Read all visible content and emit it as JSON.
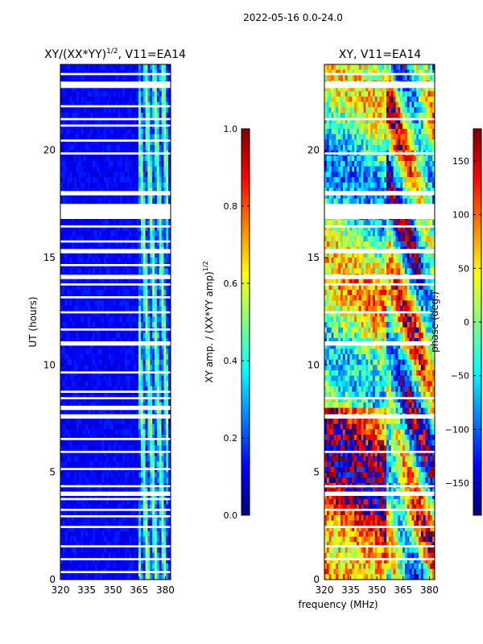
{
  "figure": {
    "suptitle": "2022-05-16 0.0-24.0",
    "xlabel": "frequency (MHz)"
  },
  "colors": {
    "jet": [
      "#00007f",
      "#0000ff",
      "#007fff",
      "#00ffff",
      "#7fff7f",
      "#ffff00",
      "#ff7f00",
      "#ff0000",
      "#7f0000"
    ],
    "blank_row": "#ffffff"
  },
  "chart_data": [
    {
      "type": "heatmap",
      "title": "XY/(XX*YY)",
      "title_superscript": "1/2",
      "title_suffix": ", V11=EA14",
      "ylabel": "UT (hours)",
      "xlim": [
        320,
        383
      ],
      "ylim": [
        0,
        24
      ],
      "xticks": [
        320,
        335,
        350,
        365,
        380
      ],
      "yticks": [
        0,
        5,
        10,
        15,
        20
      ],
      "colorbar": {
        "label": "XY amp. / (XX*YY amp)",
        "label_superscript": "1/2",
        "range": [
          0.0,
          1.0
        ],
        "ticks": [
          "0.0",
          "0.2",
          "0.4",
          "0.6",
          "0.8",
          "1.0"
        ],
        "tick_values": [
          0.0,
          0.2,
          0.4,
          0.6,
          0.8,
          1.0
        ]
      },
      "blank_time_ranges_hours": [
        [
          0.3,
          0.4
        ],
        [
          0.9,
          1.0
        ],
        [
          1.5,
          1.6
        ],
        [
          2.4,
          2.5
        ],
        [
          2.9,
          3.0
        ],
        [
          3.2,
          3.3
        ],
        [
          3.7,
          3.8
        ],
        [
          3.9,
          4.1
        ],
        [
          4.3,
          4.4
        ],
        [
          5.1,
          5.2
        ],
        [
          5.9,
          6.0
        ],
        [
          6.5,
          6.6
        ],
        [
          7.5,
          7.7
        ],
        [
          7.9,
          8.1
        ],
        [
          8.4,
          8.5
        ],
        [
          8.7,
          8.8
        ],
        [
          9.6,
          9.7
        ],
        [
          10.9,
          11.1
        ],
        [
          11.6,
          11.7
        ],
        [
          12.4,
          12.5
        ],
        [
          13.1,
          13.2
        ],
        [
          13.7,
          13.8
        ],
        [
          14.0,
          14.2
        ],
        [
          14.6,
          14.7
        ],
        [
          15.2,
          15.4
        ],
        [
          15.7,
          15.8
        ],
        [
          16.4,
          16.5
        ],
        [
          16.8,
          17.5
        ],
        [
          17.9,
          18.1
        ],
        [
          19.8,
          19.9
        ],
        [
          20.4,
          20.5
        ],
        [
          21.1,
          21.2
        ],
        [
          21.4,
          21.5
        ],
        [
          22.0,
          22.1
        ],
        [
          22.9,
          23.2
        ],
        [
          23.5,
          23.6
        ]
      ],
      "bright_band_mhz": [
        364,
        382
      ],
      "background_level": 0.08,
      "band_level": 0.42
    },
    {
      "type": "heatmap",
      "title": "XY, V11=EA14",
      "ylabel": "",
      "xlim": [
        320,
        383
      ],
      "ylim": [
        0,
        24
      ],
      "xticks": [
        320,
        335,
        350,
        365,
        380
      ],
      "yticks": [
        0,
        5,
        10,
        15,
        20
      ],
      "colorbar": {
        "label": "phase (deg.)",
        "range": [
          -180,
          180
        ],
        "ticks": [
          "−150",
          "−100",
          "−50",
          "0",
          "50",
          "100",
          "150"
        ],
        "tick_values": [
          -150,
          -100,
          -50,
          0,
          50,
          100,
          150
        ]
      },
      "blank_time_ranges_hours": [
        [
          0.9,
          1.0
        ],
        [
          1.5,
          1.6
        ],
        [
          2.4,
          2.5
        ],
        [
          3.2,
          3.3
        ],
        [
          3.9,
          4.1
        ],
        [
          4.3,
          4.4
        ],
        [
          5.9,
          6.0
        ],
        [
          7.5,
          7.7
        ],
        [
          8.4,
          8.5
        ],
        [
          10.9,
          11.1
        ],
        [
          12.4,
          12.5
        ],
        [
          13.7,
          13.8
        ],
        [
          14.0,
          14.2
        ],
        [
          15.2,
          15.4
        ],
        [
          16.4,
          16.5
        ],
        [
          16.8,
          17.5
        ],
        [
          17.9,
          18.1
        ],
        [
          19.8,
          19.9
        ],
        [
          21.4,
          21.5
        ],
        [
          22.9,
          23.2
        ],
        [
          23.5,
          23.6
        ]
      ]
    }
  ]
}
